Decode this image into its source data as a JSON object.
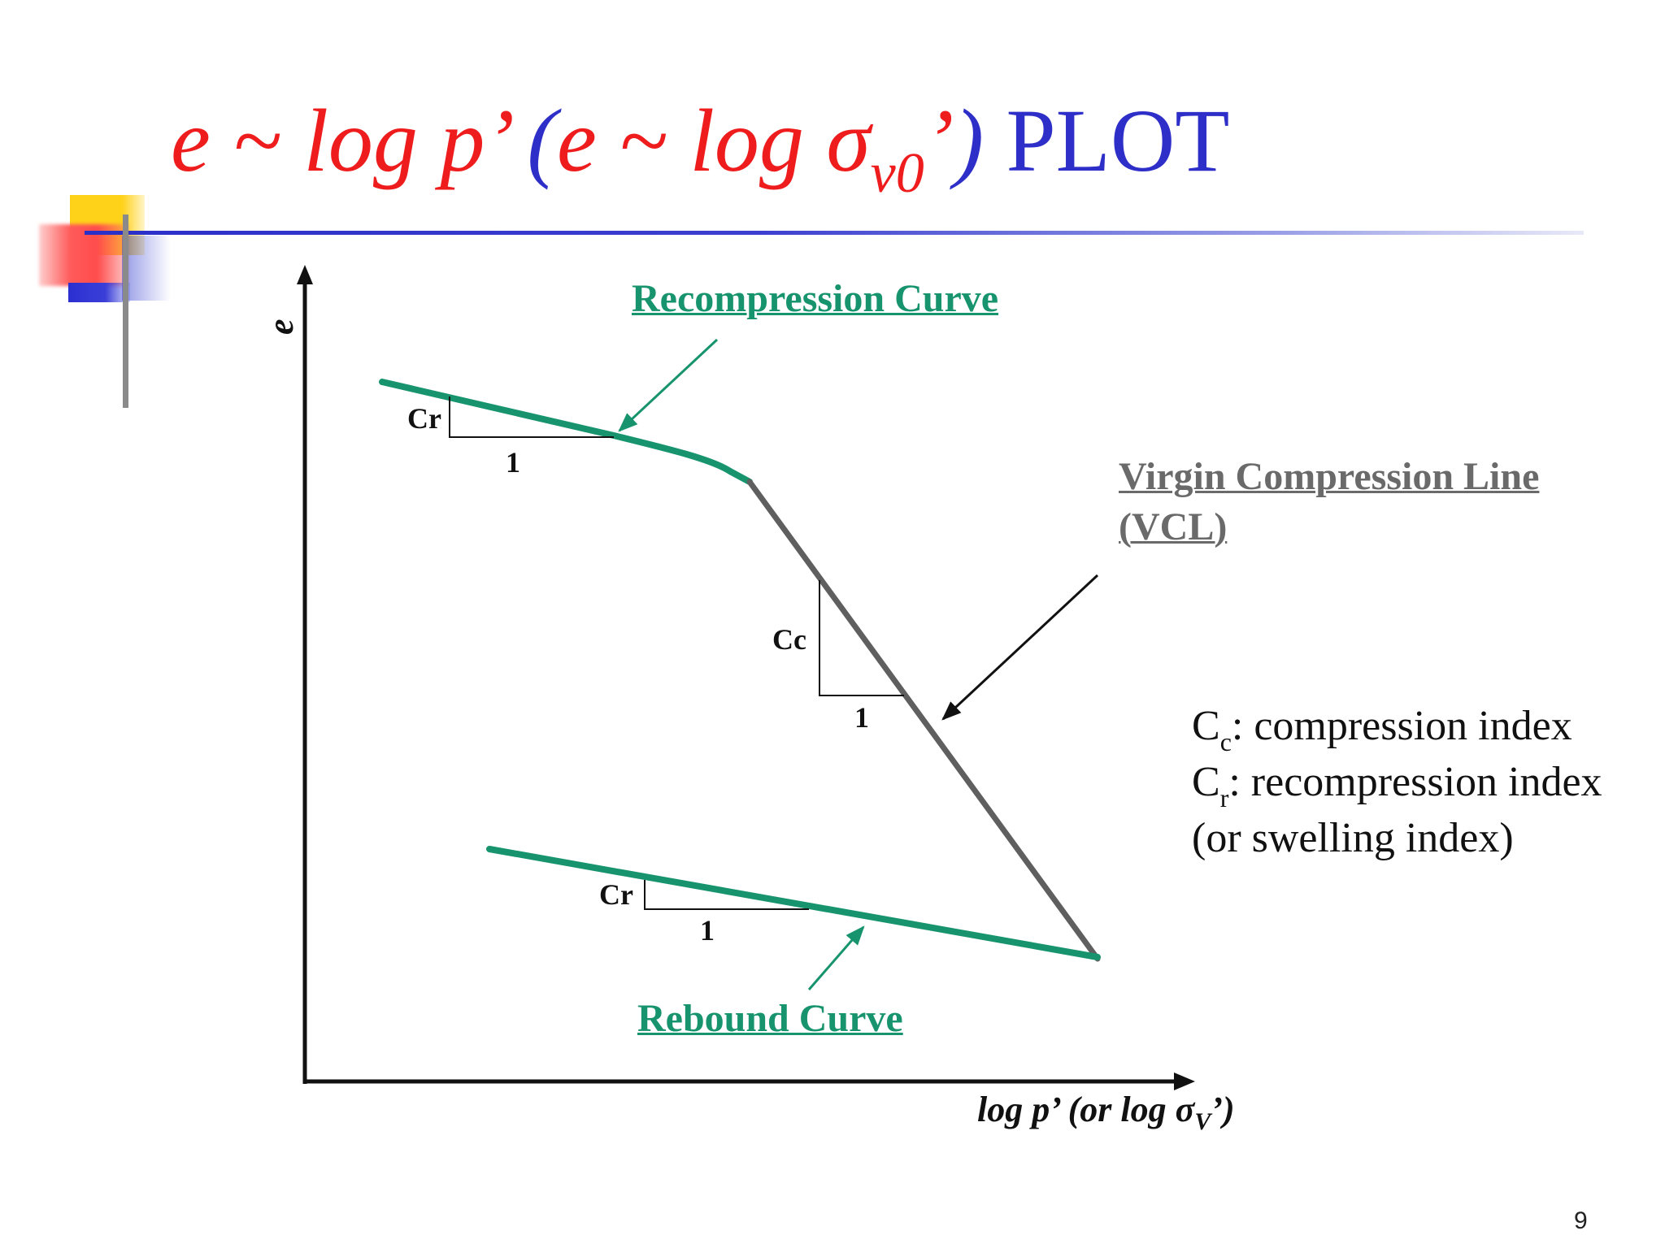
{
  "title": {
    "part1": "e ~ log p’ ",
    "part2": "(",
    "part3": "e ~ log σ",
    "subscript": "v0",
    "part4": "’",
    "part5": ")",
    "part6": " PLOT"
  },
  "labels": {
    "recompression_curve": "Recompression Curve",
    "virgin_line_1": "Virgin Compression Line",
    "virgin_line_2": "(VCL)",
    "rebound_curve": "Rebound Curve",
    "cr_top": "Cr",
    "one_top": "1",
    "cc": "Cc",
    "one_mid": "1",
    "cr_bottom": "Cr",
    "one_bottom": "1"
  },
  "axes": {
    "y_label": "e",
    "x_label_main": "log p’ (or log σ",
    "x_label_sub": "V",
    "x_label_end": "’)"
  },
  "legend": {
    "cc_symbol": "C",
    "cc_sub": "c",
    "cc_text": ": compression index",
    "cr_symbol": "C",
    "cr_sub": "r",
    "cr_text": ": recompression index",
    "swelling": "(or swelling index)"
  },
  "page_number": "9",
  "colors": {
    "title_red": "#ee1c1c",
    "title_blue": "#2e2ec8",
    "curve_green": "#17946d",
    "vcl_grey": "#5f5f5f"
  }
}
